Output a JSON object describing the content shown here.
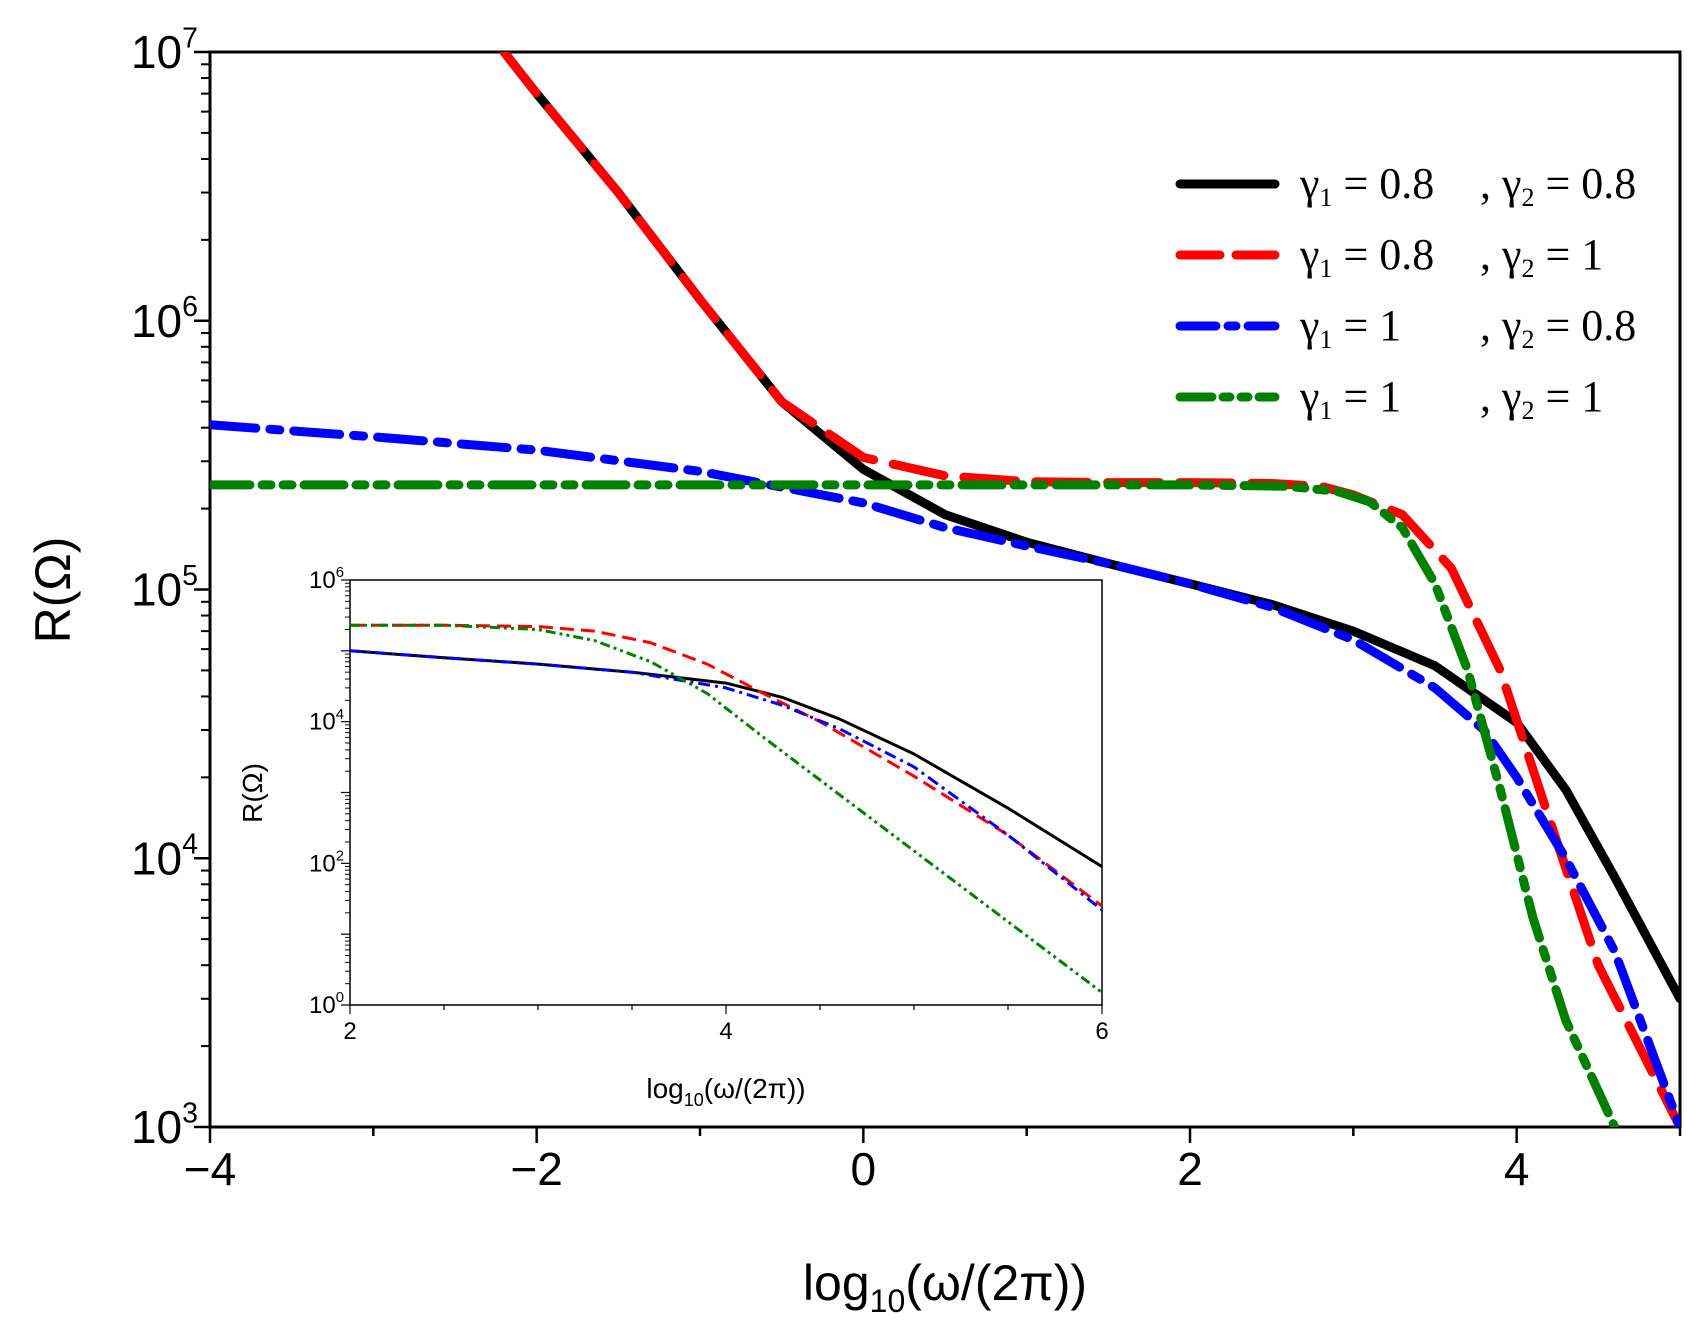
{
  "chart_data": [
    {
      "type": "line",
      "id": "main",
      "title": "",
      "xlabel": "log10(ω/(2π))",
      "xlabel_parts": {
        "pre": "log",
        "sub": "10",
        "post": "(ω/(2π))"
      },
      "ylabel": "R(Ω)",
      "xlim": [
        -4,
        5
      ],
      "ylim": [
        1000,
        10000000
      ],
      "yscale": "log",
      "xticks": [
        -4,
        -2,
        0,
        2,
        4
      ],
      "xtick_labels": [
        "−4",
        "−2",
        "0",
        "2",
        "4"
      ],
      "yticks_exp": [
        3,
        4,
        5,
        6,
        7
      ],
      "ytick_base": "10",
      "legend_position": "top-right",
      "series": [
        {
          "name": "γ1 = 0.8 , γ2 = 0.8",
          "legend": {
            "g1": "0.8",
            "g2": "0.8"
          },
          "color": "#000000",
          "style": "solid",
          "x": [
            -2.2,
            -2.0,
            -1.5,
            -1.0,
            -0.5,
            0.0,
            0.5,
            1.0,
            1.5,
            2.0,
            2.5,
            3.0,
            3.5,
            4.0,
            4.3,
            4.6,
            5.0
          ],
          "y": [
            10000000,
            7000000,
            3000000,
            1200000,
            500000,
            280000,
            190000,
            150000,
            125000,
            105000,
            88000,
            70000,
            52000,
            32000,
            18000,
            8500,
            3000
          ]
        },
        {
          "name": "γ1 = 0.8 , γ2 = 1",
          "legend": {
            "g1": "0.8",
            "g2": "1"
          },
          "color": "#ff0000",
          "style": "dash",
          "x": [
            -2.2,
            -2.0,
            -1.5,
            -1.0,
            -0.5,
            0.0,
            0.5,
            1.0,
            1.5,
            2.0,
            2.5,
            2.8,
            3.0,
            3.3,
            3.6,
            3.9,
            4.2,
            4.5,
            5.0
          ],
          "y": [
            10000000,
            7000000,
            3000000,
            1200000,
            500000,
            310000,
            265000,
            252000,
            250000,
            250000,
            248000,
            242000,
            225000,
            190000,
            120000,
            50000,
            14000,
            4000,
            1000
          ]
        },
        {
          "name": "γ1 = 1 , γ2 = 0.8",
          "legend": {
            "g1": "1",
            "g2": "0.8"
          },
          "color": "#0000ff",
          "style": "dashdot",
          "x": [
            -4.0,
            -3.0,
            -2.0,
            -1.0,
            0.0,
            0.5,
            1.0,
            1.5,
            2.0,
            2.5,
            3.0,
            3.5,
            3.8,
            4.0,
            4.3,
            4.6,
            5.0
          ],
          "y": [
            410000,
            370000,
            330000,
            275000,
            210000,
            170000,
            145000,
            125000,
            105000,
            86000,
            65000,
            43000,
            30000,
            20000,
            10000,
            4500,
            1000
          ]
        },
        {
          "name": "γ1 = 1 , γ2 = 1",
          "legend": {
            "g1": "1",
            "g2": "1"
          },
          "color": "#008000",
          "style": "dashdotdot",
          "x": [
            -4.0,
            -3.0,
            -2.0,
            -1.0,
            0.0,
            1.0,
            2.0,
            2.6,
            2.9,
            3.1,
            3.3,
            3.5,
            3.7,
            3.9,
            4.1,
            4.3,
            4.6
          ],
          "y": [
            245000,
            245000,
            245000,
            245000,
            245000,
            245000,
            245000,
            242000,
            232000,
            212000,
            170000,
            105000,
            50000,
            18000,
            6000,
            2500,
            1000
          ]
        }
      ]
    },
    {
      "type": "line",
      "id": "inset",
      "title": "",
      "xlabel": "log10(ω/(2π))",
      "xlabel_parts": {
        "pre": "log",
        "sub": "10",
        "post": "(ω/(2π))"
      },
      "ylabel": "R(Ω)",
      "xlim": [
        2,
        6
      ],
      "ylim": [
        1,
        1000000
      ],
      "yscale": "log",
      "xticks": [
        2,
        4,
        6
      ],
      "xtick_labels": [
        "2",
        "4",
        "6"
      ],
      "yticks_exp": [
        0,
        2,
        4,
        6
      ],
      "ytick_base": "10",
      "series": [
        {
          "name": "γ1 = 0.8 , γ2 = 0.8",
          "color": "#000000",
          "style": "solid",
          "x": [
            2.0,
            2.5,
            3.0,
            3.5,
            4.0,
            4.3,
            4.6,
            5.0,
            5.5,
            6.0
          ],
          "y": [
            100000,
            80000,
            65000,
            50000,
            35000,
            22000,
            11000,
            3500,
            600,
            90
          ]
        },
        {
          "name": "γ1 = 0.8 , γ2 = 1",
          "color": "#ff0000",
          "style": "dash",
          "x": [
            2.0,
            2.5,
            3.0,
            3.3,
            3.6,
            3.9,
            4.2,
            4.5,
            5.0,
            5.5,
            6.0
          ],
          "y": [
            230000,
            230000,
            220000,
            190000,
            130000,
            65000,
            25000,
            10000,
            1700,
            250,
            25
          ]
        },
        {
          "name": "γ1 = 1 , γ2 = 0.8",
          "color": "#0000ff",
          "style": "dashdot",
          "x": [
            2.0,
            2.5,
            3.0,
            3.5,
            4.0,
            4.3,
            4.6,
            5.0,
            5.5,
            6.0
          ],
          "y": [
            100000,
            80000,
            65000,
            50000,
            30000,
            17000,
            8000,
            2300,
            250,
            22
          ]
        },
        {
          "name": "γ1 = 1 , γ2 = 1",
          "color": "#008000",
          "style": "dashdotdot",
          "x": [
            2.0,
            2.5,
            3.0,
            3.3,
            3.6,
            3.9,
            4.2,
            4.5,
            5.0,
            5.5,
            6.0
          ],
          "y": [
            230000,
            230000,
            200000,
            140000,
            70000,
            25000,
            6000,
            1500,
            150,
            15,
            1.5
          ]
        }
      ]
    }
  ]
}
